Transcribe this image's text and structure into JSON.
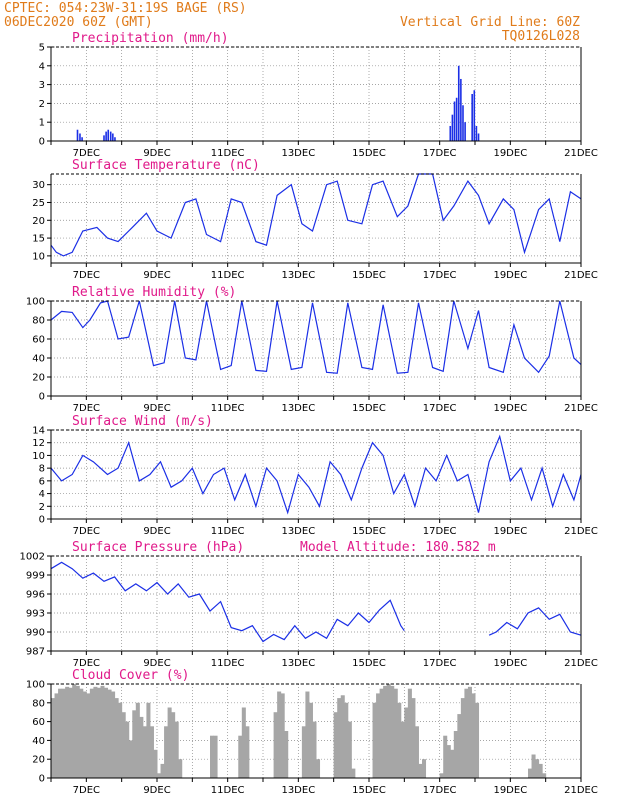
{
  "header": {
    "line1": "CPTEC:   054:23W-31:19S   BAGE (RS)",
    "line2": "06DEC2020 60Z (GMT)",
    "right1": "Vertical Grid Line: 60Z",
    "right2": "TQ0126L028"
  },
  "x_labels": [
    "7DEC",
    "9DEC",
    "11DEC",
    "13DEC",
    "15DEC",
    "17DEC",
    "19DEC",
    "21DEC"
  ],
  "colors": {
    "header": "#e07b1a",
    "title": "#e0198a",
    "line": "#1b2fe6",
    "bar_precip": "#1b2fe6",
    "bar_cloud": "#a6a6a6",
    "grid": "#888888"
  },
  "chart_data": [
    {
      "type": "bar",
      "title": "Precipitation (mm/h)",
      "ylim": [
        0,
        5
      ],
      "yticks": [
        0,
        1,
        2,
        3,
        4,
        5
      ],
      "xlim": [
        6,
        21
      ],
      "grid": true,
      "x": [
        6.75,
        6.82,
        6.88,
        7.5,
        7.56,
        7.62,
        7.69,
        7.75,
        7.81,
        17.3,
        17.36,
        17.42,
        17.48,
        17.54,
        17.6,
        17.66,
        17.72,
        17.92,
        17.98,
        18.04,
        18.1
      ],
      "values": [
        0.6,
        0.4,
        0.2,
        0.3,
        0.5,
        0.6,
        0.5,
        0.4,
        0.2,
        0.8,
        1.4,
        2.1,
        2.3,
        4.0,
        3.3,
        1.9,
        1.0,
        2.5,
        2.7,
        0.8,
        0.4
      ]
    },
    {
      "type": "line",
      "title": "Surface Temperature (nC)",
      "ylim": [
        8,
        33
      ],
      "yticks": [
        10,
        15,
        20,
        25,
        30
      ],
      "xlim": [
        6,
        21
      ],
      "grid": true,
      "x": [
        6.0,
        6.15,
        6.35,
        6.6,
        6.9,
        7.3,
        7.6,
        7.9,
        8.3,
        8.7,
        9.0,
        9.4,
        9.8,
        10.1,
        10.4,
        10.8,
        11.1,
        11.4,
        11.8,
        12.1,
        12.4,
        12.8,
        13.1,
        13.4,
        13.8,
        14.1,
        14.4,
        14.8,
        15.1,
        15.4,
        15.8,
        16.1,
        16.4,
        16.8,
        17.1,
        17.4,
        17.8,
        18.1,
        18.4,
        18.8,
        19.1,
        19.4,
        19.8,
        20.1,
        20.4,
        20.7,
        21.0
      ],
      "values": [
        13,
        11,
        10,
        11,
        17,
        18,
        15,
        14,
        18,
        22,
        17,
        15,
        25,
        26,
        16,
        14,
        26,
        25,
        14,
        13,
        27,
        30,
        19,
        17,
        30,
        31,
        20,
        19,
        30,
        31,
        21,
        24,
        33,
        33,
        20,
        24,
        31,
        27,
        19,
        26,
        23,
        11,
        23,
        26,
        14,
        28,
        26
      ]
    },
    {
      "type": "line",
      "title": "Relative Humidity (%)",
      "ylim": [
        0,
        100
      ],
      "yticks": [
        0,
        20,
        40,
        60,
        80,
        100
      ],
      "xlim": [
        6,
        21
      ],
      "grid": true,
      "x": [
        6.0,
        6.3,
        6.6,
        6.9,
        7.1,
        7.4,
        7.6,
        7.9,
        8.2,
        8.5,
        8.9,
        9.2,
        9.5,
        9.8,
        10.1,
        10.4,
        10.8,
        11.1,
        11.4,
        11.8,
        12.1,
        12.4,
        12.8,
        13.1,
        13.4,
        13.8,
        14.1,
        14.4,
        14.8,
        15.1,
        15.4,
        15.8,
        16.1,
        16.4,
        16.8,
        17.1,
        17.4,
        17.8,
        18.1,
        18.4,
        18.8,
        19.1,
        19.4,
        19.8,
        20.1,
        20.4,
        20.8,
        21.0
      ],
      "values": [
        80,
        89,
        88,
        72,
        80,
        98,
        100,
        60,
        62,
        100,
        32,
        35,
        100,
        40,
        38,
        100,
        28,
        32,
        100,
        27,
        26,
        100,
        28,
        30,
        98,
        25,
        24,
        98,
        30,
        28,
        96,
        24,
        25,
        98,
        30,
        26,
        100,
        50,
        90,
        30,
        25,
        75,
        40,
        25,
        42,
        100,
        40,
        33
      ]
    },
    {
      "type": "line",
      "title": "Surface Wind (m/s)",
      "ylim": [
        0,
        14
      ],
      "yticks": [
        0,
        2,
        4,
        6,
        8,
        10,
        12,
        14
      ],
      "xlim": [
        6,
        21
      ],
      "grid": true,
      "x": [
        6.0,
        6.3,
        6.6,
        6.9,
        7.2,
        7.6,
        7.9,
        8.2,
        8.5,
        8.8,
        9.1,
        9.4,
        9.7,
        10.0,
        10.3,
        10.6,
        10.9,
        11.2,
        11.5,
        11.8,
        12.1,
        12.4,
        12.7,
        13.0,
        13.3,
        13.6,
        13.9,
        14.2,
        14.5,
        14.8,
        15.1,
        15.4,
        15.7,
        16.0,
        16.3,
        16.6,
        16.9,
        17.2,
        17.5,
        17.8,
        18.1,
        18.4,
        18.7,
        19.0,
        19.3,
        19.6,
        19.9,
        20.2,
        20.5,
        20.8,
        21.0
      ],
      "values": [
        8,
        6,
        7,
        10,
        9,
        7,
        8,
        12,
        6,
        7,
        9,
        5,
        6,
        8,
        4,
        7,
        8,
        3,
        7,
        2,
        8,
        6,
        1,
        7,
        5,
        2,
        9,
        7,
        3,
        8,
        12,
        10,
        4,
        7,
        2,
        8,
        6,
        10,
        6,
        7,
        1,
        9,
        13,
        6,
        8,
        3,
        8,
        2,
        7,
        3,
        7
      ]
    },
    {
      "type": "line",
      "title": "Surface Pressure (hPa)",
      "annotation": "Model Altitude: 180.582 m",
      "ylim": [
        987,
        1002
      ],
      "yticks": [
        987,
        990,
        993,
        996,
        999,
        1002
      ],
      "xlim": [
        6,
        21
      ],
      "grid": true,
      "x": [
        6.0,
        6.3,
        6.6,
        6.9,
        7.2,
        7.5,
        7.8,
        8.1,
        8.4,
        8.7,
        9.0,
        9.3,
        9.6,
        9.9,
        10.2,
        10.5,
        10.8,
        11.1,
        11.4,
        11.7,
        12.0,
        12.3,
        12.6,
        12.9,
        13.2,
        13.5,
        13.8,
        14.1,
        14.4,
        14.7,
        15.0,
        15.3,
        15.6,
        15.9,
        16.0,
        18.4,
        18.6,
        18.9,
        19.2,
        19.5,
        19.8,
        20.1,
        20.4,
        20.7,
        21.0
      ],
      "values": [
        1000,
        1001,
        1000,
        998.5,
        999.3,
        998,
        998.7,
        996.5,
        997.6,
        996.5,
        997.8,
        996,
        997.6,
        995.5,
        996,
        993.3,
        994.8,
        990.7,
        990.2,
        991,
        988.5,
        989.6,
        988.8,
        991,
        989,
        990,
        989,
        992,
        991,
        993,
        991.5,
        993.5,
        995,
        991,
        990.2,
        989.5,
        990,
        991.5,
        990.5,
        993,
        993.8,
        992,
        992.8,
        990,
        989.5
      ]
    },
    {
      "type": "bar",
      "title": "Cloud Cover (%)",
      "ylim": [
        0,
        100
      ],
      "yticks": [
        0,
        20,
        40,
        60,
        80,
        100
      ],
      "xlim": [
        6,
        21
      ],
      "grid": true,
      "x": [
        6.05,
        6.15,
        6.25,
        6.35,
        6.45,
        6.55,
        6.65,
        6.75,
        6.85,
        6.95,
        7.05,
        7.15,
        7.25,
        7.35,
        7.45,
        7.55,
        7.65,
        7.75,
        7.85,
        7.95,
        8.05,
        8.15,
        8.25,
        8.35,
        8.45,
        8.55,
        8.65,
        8.75,
        8.85,
        8.95,
        9.05,
        9.15,
        9.25,
        9.35,
        9.45,
        9.55,
        9.65,
        9.75,
        9.85,
        9.95,
        10.05,
        10.15,
        10.25,
        10.35,
        10.45,
        10.55,
        10.65,
        10.75,
        10.85,
        10.95,
        11.05,
        11.15,
        11.25,
        11.35,
        11.45,
        11.55,
        11.65,
        11.75,
        11.85,
        11.95,
        12.05,
        12.15,
        12.25,
        12.35,
        12.45,
        12.55,
        12.65,
        12.75,
        12.85,
        12.95,
        13.05,
        13.15,
        13.25,
        13.35,
        13.45,
        13.55,
        13.65,
        13.75,
        13.85,
        13.95,
        14.05,
        14.15,
        14.25,
        14.35,
        14.45,
        14.55,
        14.65,
        14.75,
        14.85,
        14.95,
        15.05,
        15.15,
        15.25,
        15.35,
        15.45,
        15.55,
        15.65,
        15.75,
        15.85,
        15.95,
        16.05,
        16.15,
        16.25,
        16.35,
        16.45,
        16.55,
        16.65,
        16.75,
        16.85,
        16.95,
        17.05,
        17.15,
        17.25,
        17.35,
        17.45,
        17.55,
        17.65,
        17.75,
        17.85,
        17.95,
        18.05,
        18.15,
        18.25,
        18.35,
        18.45,
        18.55,
        18.65,
        18.75,
        18.85,
        18.95,
        19.05,
        19.15,
        19.25,
        19.35,
        19.45,
        19.55,
        19.65,
        19.75,
        19.85,
        19.95,
        20.05,
        20.15,
        20.25,
        20.35,
        20.45,
        20.55,
        20.65,
        20.75,
        20.85,
        20.95
      ],
      "values": [
        85,
        90,
        95,
        95,
        97,
        96,
        100,
        98,
        95,
        92,
        90,
        95,
        97,
        96,
        98,
        96,
        94,
        92,
        85,
        80,
        70,
        60,
        40,
        72,
        80,
        65,
        55,
        80,
        55,
        30,
        5,
        15,
        55,
        75,
        70,
        60,
        20,
        0,
        0,
        0,
        0,
        0,
        0,
        0,
        0,
        45,
        45,
        0,
        0,
        0,
        0,
        0,
        0,
        45,
        75,
        55,
        0,
        0,
        0,
        0,
        0,
        0,
        0,
        70,
        92,
        90,
        50,
        0,
        0,
        0,
        0,
        55,
        92,
        80,
        60,
        20,
        0,
        0,
        0,
        0,
        70,
        85,
        88,
        80,
        60,
        10,
        0,
        0,
        0,
        0,
        0,
        80,
        90,
        95,
        98,
        100,
        98,
        95,
        80,
        60,
        75,
        95,
        85,
        55,
        15,
        20,
        0,
        0,
        0,
        0,
        5,
        45,
        35,
        30,
        50,
        68,
        85,
        95,
        97,
        90,
        80,
        0,
        0,
        0,
        0,
        0,
        0,
        0,
        0,
        0,
        0,
        0,
        0,
        0,
        0,
        10,
        25,
        20,
        15,
        5,
        0,
        0,
        0,
        0,
        0,
        0,
        0,
        0,
        0,
        0
      ]
    }
  ]
}
